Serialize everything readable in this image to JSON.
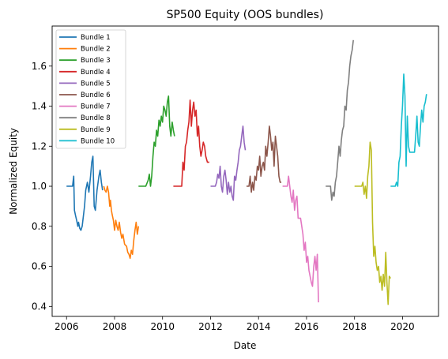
{
  "chart_data": {
    "type": "line",
    "title": "SP500 Equity (OOS bundles)",
    "xlabel": "Date",
    "ylabel": "Normalized Equity",
    "xlim": [
      2005.4,
      2021.5
    ],
    "ylim": [
      0.35,
      1.8
    ],
    "x_ticks": [
      2006,
      2008,
      2010,
      2012,
      2014,
      2016,
      2018,
      2020
    ],
    "x_tick_labels": [
      "2006",
      "2008",
      "2010",
      "2012",
      "2014",
      "2016",
      "2018",
      "2020"
    ],
    "y_ticks": [
      0.4,
      0.6,
      0.8,
      1.0,
      1.2,
      1.4,
      1.6
    ],
    "y_tick_labels": [
      "0.4",
      "0.6",
      "0.8",
      "1.0",
      "1.2",
      "1.4",
      "1.6"
    ],
    "legend_position": "top-left",
    "series": [
      {
        "name": "Bundle 1",
        "color": "#1f77b4",
        "x": [
          2006.0,
          2006.15,
          2006.25,
          2006.3,
          2006.33,
          2006.38,
          2006.42,
          2006.47,
          2006.5,
          2006.55,
          2006.6,
          2006.65,
          2006.7,
          2006.75,
          2006.8,
          2006.87,
          2006.93,
          2007.0,
          2007.05,
          2007.1,
          2007.15,
          2007.2,
          2007.27,
          2007.35,
          2007.4,
          2007.45,
          2007.5
        ],
        "y": [
          1.0,
          1.0,
          1.0,
          1.05,
          0.88,
          0.85,
          0.83,
          0.8,
          0.82,
          0.79,
          0.78,
          0.8,
          0.85,
          0.9,
          0.98,
          1.02,
          0.97,
          1.05,
          1.12,
          1.15,
          0.9,
          0.88,
          0.98,
          1.05,
          1.08,
          1.02,
          0.98
        ]
      },
      {
        "name": "Bundle 2",
        "color": "#ff7f0e",
        "x": [
          2007.55,
          2007.6,
          2007.65,
          2007.7,
          2007.75,
          2007.8,
          2007.83,
          2007.87,
          2007.9,
          2007.95,
          2008.0,
          2008.05,
          2008.1,
          2008.15,
          2008.2,
          2008.25,
          2008.3,
          2008.35,
          2008.42,
          2008.5,
          2008.55,
          2008.6,
          2008.65,
          2008.7,
          2008.75,
          2008.8,
          2008.85,
          2008.9,
          2008.95,
          2009.0
        ],
        "y": [
          1.0,
          0.98,
          0.97,
          1.0,
          0.97,
          0.9,
          0.93,
          0.88,
          0.86,
          0.83,
          0.78,
          0.83,
          0.8,
          0.78,
          0.82,
          0.77,
          0.74,
          0.76,
          0.71,
          0.7,
          0.67,
          0.66,
          0.64,
          0.68,
          0.66,
          0.73,
          0.78,
          0.82,
          0.76,
          0.8
        ]
      },
      {
        "name": "Bundle 3",
        "color": "#2ca02c",
        "x": [
          2009.0,
          2009.3,
          2009.4,
          2009.45,
          2009.5,
          2009.55,
          2009.6,
          2009.65,
          2009.7,
          2009.75,
          2009.8,
          2009.85,
          2009.9,
          2009.95,
          2010.0,
          2010.05,
          2010.1,
          2010.15,
          2010.2,
          2010.25,
          2010.3,
          2010.35,
          2010.4,
          2010.45,
          2010.5
        ],
        "y": [
          1.0,
          1.0,
          1.03,
          1.06,
          1.0,
          1.05,
          1.15,
          1.22,
          1.2,
          1.28,
          1.25,
          1.33,
          1.3,
          1.35,
          1.32,
          1.4,
          1.38,
          1.35,
          1.42,
          1.45,
          1.3,
          1.25,
          1.32,
          1.28,
          1.25
        ]
      },
      {
        "name": "Bundle 4",
        "color": "#d62728",
        "x": [
          2010.45,
          2010.8,
          2010.85,
          2010.9,
          2010.95,
          2011.0,
          2011.05,
          2011.1,
          2011.15,
          2011.2,
          2011.25,
          2011.3,
          2011.35,
          2011.4,
          2011.45,
          2011.5,
          2011.55,
          2011.6,
          2011.65,
          2011.7,
          2011.75,
          2011.8,
          2011.87,
          2011.95
        ],
        "y": [
          1.0,
          1.0,
          1.12,
          1.08,
          1.2,
          1.22,
          1.28,
          1.32,
          1.43,
          1.3,
          1.38,
          1.42,
          1.35,
          1.38,
          1.25,
          1.3,
          1.2,
          1.15,
          1.18,
          1.22,
          1.2,
          1.15,
          1.12,
          1.12
        ]
      },
      {
        "name": "Bundle 5",
        "color": "#9467bd",
        "x": [
          2012.0,
          2012.2,
          2012.25,
          2012.3,
          2012.35,
          2012.4,
          2012.45,
          2012.5,
          2012.55,
          2012.6,
          2012.65,
          2012.7,
          2012.75,
          2012.8,
          2012.85,
          2012.9,
          2012.95,
          2013.0,
          2013.05,
          2013.1,
          2013.15,
          2013.2,
          2013.25,
          2013.3,
          2013.35,
          2013.4,
          2013.45
        ],
        "y": [
          1.0,
          1.0,
          1.02,
          1.06,
          1.04,
          1.1,
          1.0,
          0.97,
          1.05,
          1.08,
          1.03,
          0.96,
          1.02,
          0.97,
          1.0,
          0.95,
          0.93,
          1.05,
          1.03,
          1.08,
          1.12,
          1.18,
          1.2,
          1.25,
          1.3,
          1.22,
          1.18
        ]
      },
      {
        "name": "Bundle 6",
        "color": "#8c564b",
        "x": [
          2013.5,
          2013.6,
          2013.65,
          2013.7,
          2013.75,
          2013.8,
          2013.85,
          2013.9,
          2013.95,
          2014.0,
          2014.05,
          2014.1,
          2014.15,
          2014.2,
          2014.25,
          2014.3,
          2014.35,
          2014.4,
          2014.45,
          2014.5,
          2014.55,
          2014.6,
          2014.65,
          2014.7,
          2014.75,
          2014.8,
          2014.85,
          2014.9,
          2014.95
        ],
        "y": [
          1.0,
          1.0,
          1.05,
          0.97,
          1.02,
          0.98,
          1.05,
          1.03,
          1.1,
          1.08,
          1.15,
          1.05,
          1.1,
          1.12,
          1.08,
          1.2,
          1.15,
          1.22,
          1.3,
          1.25,
          1.18,
          1.22,
          1.1,
          1.25,
          1.2,
          1.15,
          1.05,
          1.02,
          1.02
        ]
      },
      {
        "name": "Bundle 7",
        "color": "#e377c2",
        "x": [
          2015.0,
          2015.2,
          2015.25,
          2015.3,
          2015.35,
          2015.4,
          2015.45,
          2015.5,
          2015.55,
          2015.6,
          2015.65,
          2015.7,
          2015.75,
          2015.8,
          2015.85,
          2015.9,
          2015.95,
          2016.0,
          2016.05,
          2016.1,
          2016.15,
          2016.2,
          2016.25,
          2016.3,
          2016.35,
          2016.4,
          2016.45,
          2016.5
        ],
        "y": [
          1.0,
          1.0,
          1.05,
          1.0,
          0.95,
          0.92,
          0.98,
          0.88,
          0.93,
          0.95,
          0.84,
          0.84,
          0.84,
          0.8,
          0.76,
          0.68,
          0.72,
          0.62,
          0.65,
          0.58,
          0.55,
          0.52,
          0.5,
          0.6,
          0.65,
          0.58,
          0.66,
          0.42
        ]
      },
      {
        "name": "Bundle 8",
        "color": "#7f7f7f",
        "x": [
          2016.8,
          2017.0,
          2017.05,
          2017.1,
          2017.15,
          2017.2,
          2017.25,
          2017.3,
          2017.35,
          2017.4,
          2017.45,
          2017.5,
          2017.55,
          2017.6,
          2017.65,
          2017.7,
          2017.75,
          2017.8,
          2017.85,
          2017.9,
          2017.95
        ],
        "y": [
          1.0,
          1.0,
          0.93,
          0.97,
          0.95,
          1.02,
          1.05,
          1.12,
          1.2,
          1.15,
          1.23,
          1.28,
          1.3,
          1.4,
          1.38,
          1.48,
          1.52,
          1.6,
          1.65,
          1.68,
          1.73
        ]
      },
      {
        "name": "Bundle 9",
        "color": "#bcbd22",
        "x": [
          2018.0,
          2018.3,
          2018.35,
          2018.4,
          2018.45,
          2018.5,
          2018.55,
          2018.6,
          2018.65,
          2018.7,
          2018.75,
          2018.8,
          2018.85,
          2018.9,
          2018.95,
          2019.0,
          2019.05,
          2019.1,
          2019.15,
          2019.2,
          2019.25,
          2019.3,
          2019.35,
          2019.4,
          2019.45,
          2019.5
        ],
        "y": [
          1.0,
          1.0,
          1.02,
          0.96,
          1.0,
          0.94,
          1.05,
          1.1,
          1.22,
          1.18,
          0.82,
          0.65,
          0.7,
          0.62,
          0.58,
          0.6,
          0.52,
          0.55,
          0.48,
          0.56,
          0.5,
          0.67,
          0.52,
          0.41,
          0.55,
          0.54
        ]
      },
      {
        "name": "Bundle 10",
        "color": "#17becf",
        "x": [
          2019.5,
          2019.7,
          2019.75,
          2019.8,
          2019.85,
          2019.9,
          2019.95,
          2020.0,
          2020.05,
          2020.1,
          2020.15,
          2020.2,
          2020.25,
          2020.3,
          2020.35,
          2020.4,
          2020.45,
          2020.5,
          2020.55,
          2020.6,
          2020.65,
          2020.7,
          2020.75,
          2020.8,
          2020.85,
          2020.9,
          2020.95,
          2021.0
        ],
        "y": [
          1.0,
          1.0,
          1.02,
          1.0,
          1.12,
          1.15,
          1.3,
          1.4,
          1.56,
          1.45,
          1.1,
          1.35,
          1.2,
          1.17,
          1.17,
          1.17,
          1.17,
          1.17,
          1.25,
          1.35,
          1.22,
          1.2,
          1.3,
          1.38,
          1.32,
          1.4,
          1.42,
          1.46
        ]
      }
    ]
  }
}
